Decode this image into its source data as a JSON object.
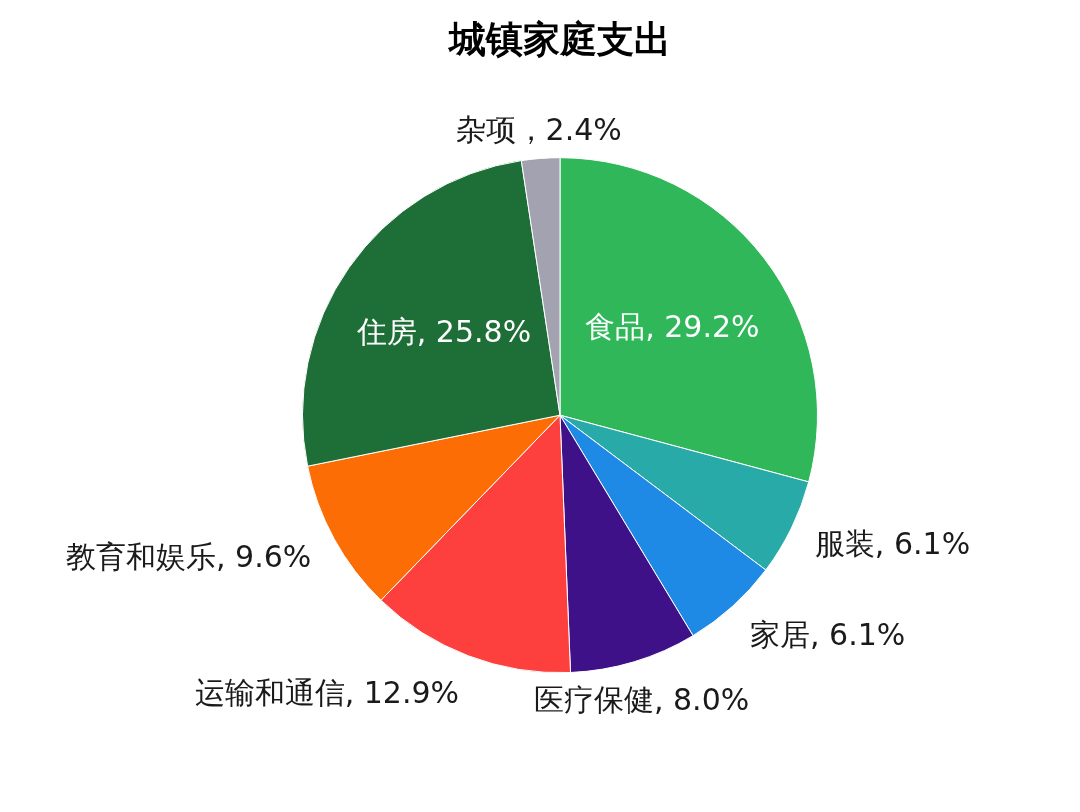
{
  "chart_data": {
    "type": "pie",
    "title": "城镇家庭支出",
    "categories": [
      "食品",
      "服装",
      "家居",
      "医疗保健",
      "运输和通信",
      "教育和娱乐",
      "住房",
      "杂项"
    ],
    "values": [
      29.2,
      6.1,
      6.1,
      8.0,
      12.9,
      9.6,
      25.8,
      2.4
    ],
    "colors": [
      "#2fb75a",
      "#27aaa8",
      "#1e8ae6",
      "#3e1188",
      "#fd3f3d",
      "#fd6d05",
      "#1e6e37",
      "#a2a2b0"
    ],
    "value_labels": [
      ", 29.2%",
      ", 6.1%",
      ", 6.1%",
      ", 8.0%",
      ", 12.9%",
      ", 9.6%",
      ", 25.8%",
      "，2.4%"
    ]
  }
}
